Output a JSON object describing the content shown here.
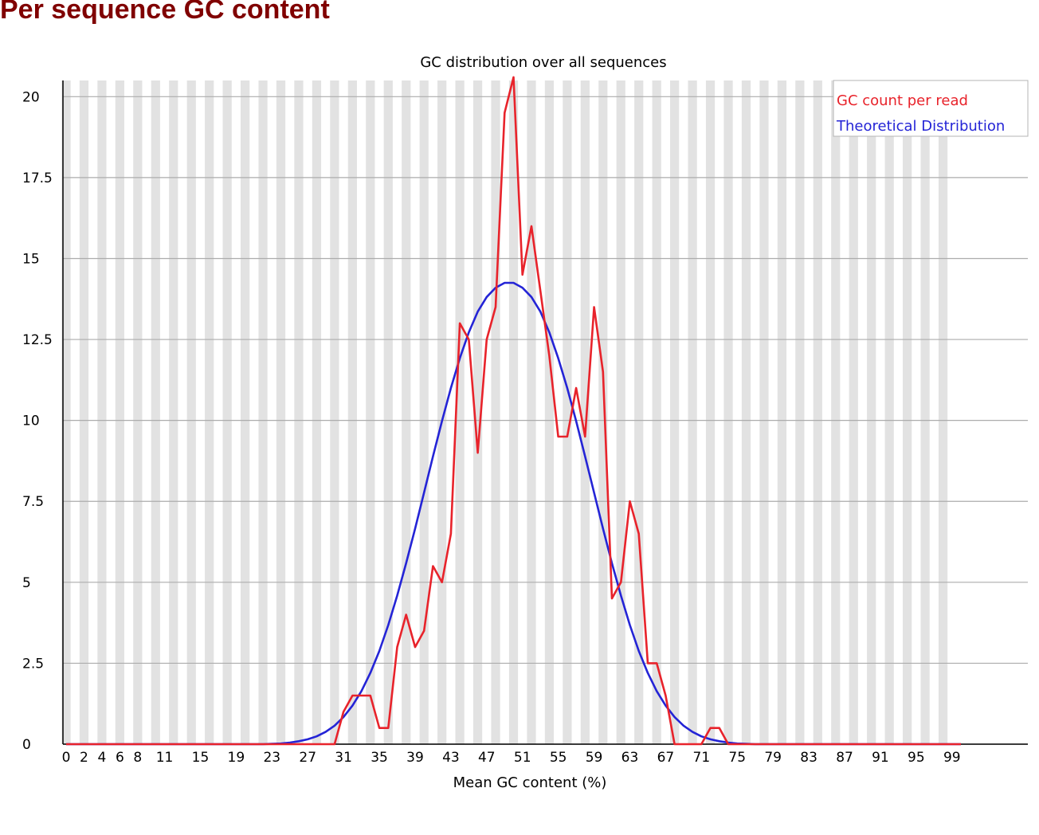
{
  "page": {
    "title": "Per sequence GC content"
  },
  "chart_data": {
    "type": "line",
    "title": "GC distribution over all sequences",
    "xlabel": "Mean GC content (%)",
    "ylabel": "",
    "xlim": [
      0,
      100
    ],
    "ylim": [
      0,
      20.5
    ],
    "x_tick_labels": [
      "0",
      "2",
      "4",
      "6",
      "8",
      "11",
      "15",
      "19",
      "23",
      "27",
      "31",
      "35",
      "39",
      "43",
      "47",
      "51",
      "55",
      "59",
      "63",
      "67",
      "71",
      "75",
      "79",
      "83",
      "87",
      "91",
      "95",
      "99"
    ],
    "y_ticks": [
      0,
      2.5,
      5,
      7.5,
      10,
      12.5,
      15,
      17.5,
      20
    ],
    "y_tick_labels": [
      "0",
      "2.5",
      "5",
      "7.5",
      "10",
      "12.5",
      "15",
      "17.5",
      "20"
    ],
    "grid": true,
    "legend_position": "top-right",
    "series": [
      {
        "name": "GC count per read",
        "color": "#e8232b",
        "points": [
          [
            0,
            0
          ],
          [
            24,
            0
          ],
          [
            30,
            0
          ],
          [
            31,
            1
          ],
          [
            32,
            1.5
          ],
          [
            34,
            1.5
          ],
          [
            35,
            0.5
          ],
          [
            36,
            0.5
          ],
          [
            37,
            3
          ],
          [
            38,
            4
          ],
          [
            39,
            3
          ],
          [
            40,
            3.5
          ],
          [
            41,
            5.5
          ],
          [
            42,
            5
          ],
          [
            43,
            6.5
          ],
          [
            44,
            13
          ],
          [
            45,
            12.5
          ],
          [
            46,
            9
          ],
          [
            47,
            12.5
          ],
          [
            48,
            13.5
          ],
          [
            49,
            19.5
          ],
          [
            50,
            20.6
          ],
          [
            51,
            14.5
          ],
          [
            52,
            16
          ],
          [
            53,
            14
          ],
          [
            54,
            12
          ],
          [
            55,
            9.5
          ],
          [
            56,
            9.5
          ],
          [
            57,
            11
          ],
          [
            58,
            9.5
          ],
          [
            59,
            13.5
          ],
          [
            60,
            11.5
          ],
          [
            61,
            4.5
          ],
          [
            62,
            5
          ],
          [
            63,
            7.5
          ],
          [
            64,
            6.5
          ],
          [
            65,
            2.5
          ],
          [
            66,
            2.5
          ],
          [
            67,
            1.5
          ],
          [
            68,
            0
          ],
          [
            71,
            0
          ],
          [
            72,
            0.5
          ],
          [
            73,
            0.5
          ],
          [
            74,
            0
          ],
          [
            100,
            0
          ]
        ]
      },
      {
        "name": "Theoretical Distribution",
        "color": "#2424d6",
        "points": [
          [
            0,
            0
          ],
          [
            22,
            0
          ],
          [
            23,
            0.01
          ],
          [
            24,
            0.02
          ],
          [
            25,
            0.05
          ],
          [
            26,
            0.09
          ],
          [
            27,
            0.15
          ],
          [
            28,
            0.24
          ],
          [
            29,
            0.38
          ],
          [
            30,
            0.57
          ],
          [
            31,
            0.84
          ],
          [
            32,
            1.19
          ],
          [
            33,
            1.64
          ],
          [
            34,
            2.2
          ],
          [
            35,
            2.88
          ],
          [
            36,
            3.68
          ],
          [
            37,
            4.59
          ],
          [
            38,
            5.59
          ],
          [
            39,
            6.66
          ],
          [
            40,
            7.77
          ],
          [
            41,
            8.89
          ],
          [
            42,
            9.98
          ],
          [
            43,
            11.0
          ],
          [
            44,
            11.92
          ],
          [
            45,
            12.72
          ],
          [
            46,
            13.36
          ],
          [
            47,
            13.81
          ],
          [
            48,
            14.1
          ],
          [
            49,
            14.25
          ],
          [
            50,
            14.25
          ],
          [
            51,
            14.1
          ],
          [
            52,
            13.81
          ],
          [
            53,
            13.36
          ],
          [
            54,
            12.72
          ],
          [
            55,
            11.92
          ],
          [
            56,
            11.0
          ],
          [
            57,
            9.98
          ],
          [
            58,
            8.89
          ],
          [
            59,
            7.77
          ],
          [
            60,
            6.66
          ],
          [
            61,
            5.59
          ],
          [
            62,
            4.59
          ],
          [
            63,
            3.68
          ],
          [
            64,
            2.88
          ],
          [
            65,
            2.2
          ],
          [
            66,
            1.64
          ],
          [
            67,
            1.19
          ],
          [
            68,
            0.84
          ],
          [
            69,
            0.57
          ],
          [
            70,
            0.38
          ],
          [
            71,
            0.24
          ],
          [
            72,
            0.15
          ],
          [
            73,
            0.09
          ],
          [
            74,
            0.05
          ],
          [
            75,
            0.02
          ],
          [
            76,
            0.01
          ],
          [
            77,
            0
          ],
          [
            100,
            0
          ]
        ]
      }
    ]
  }
}
